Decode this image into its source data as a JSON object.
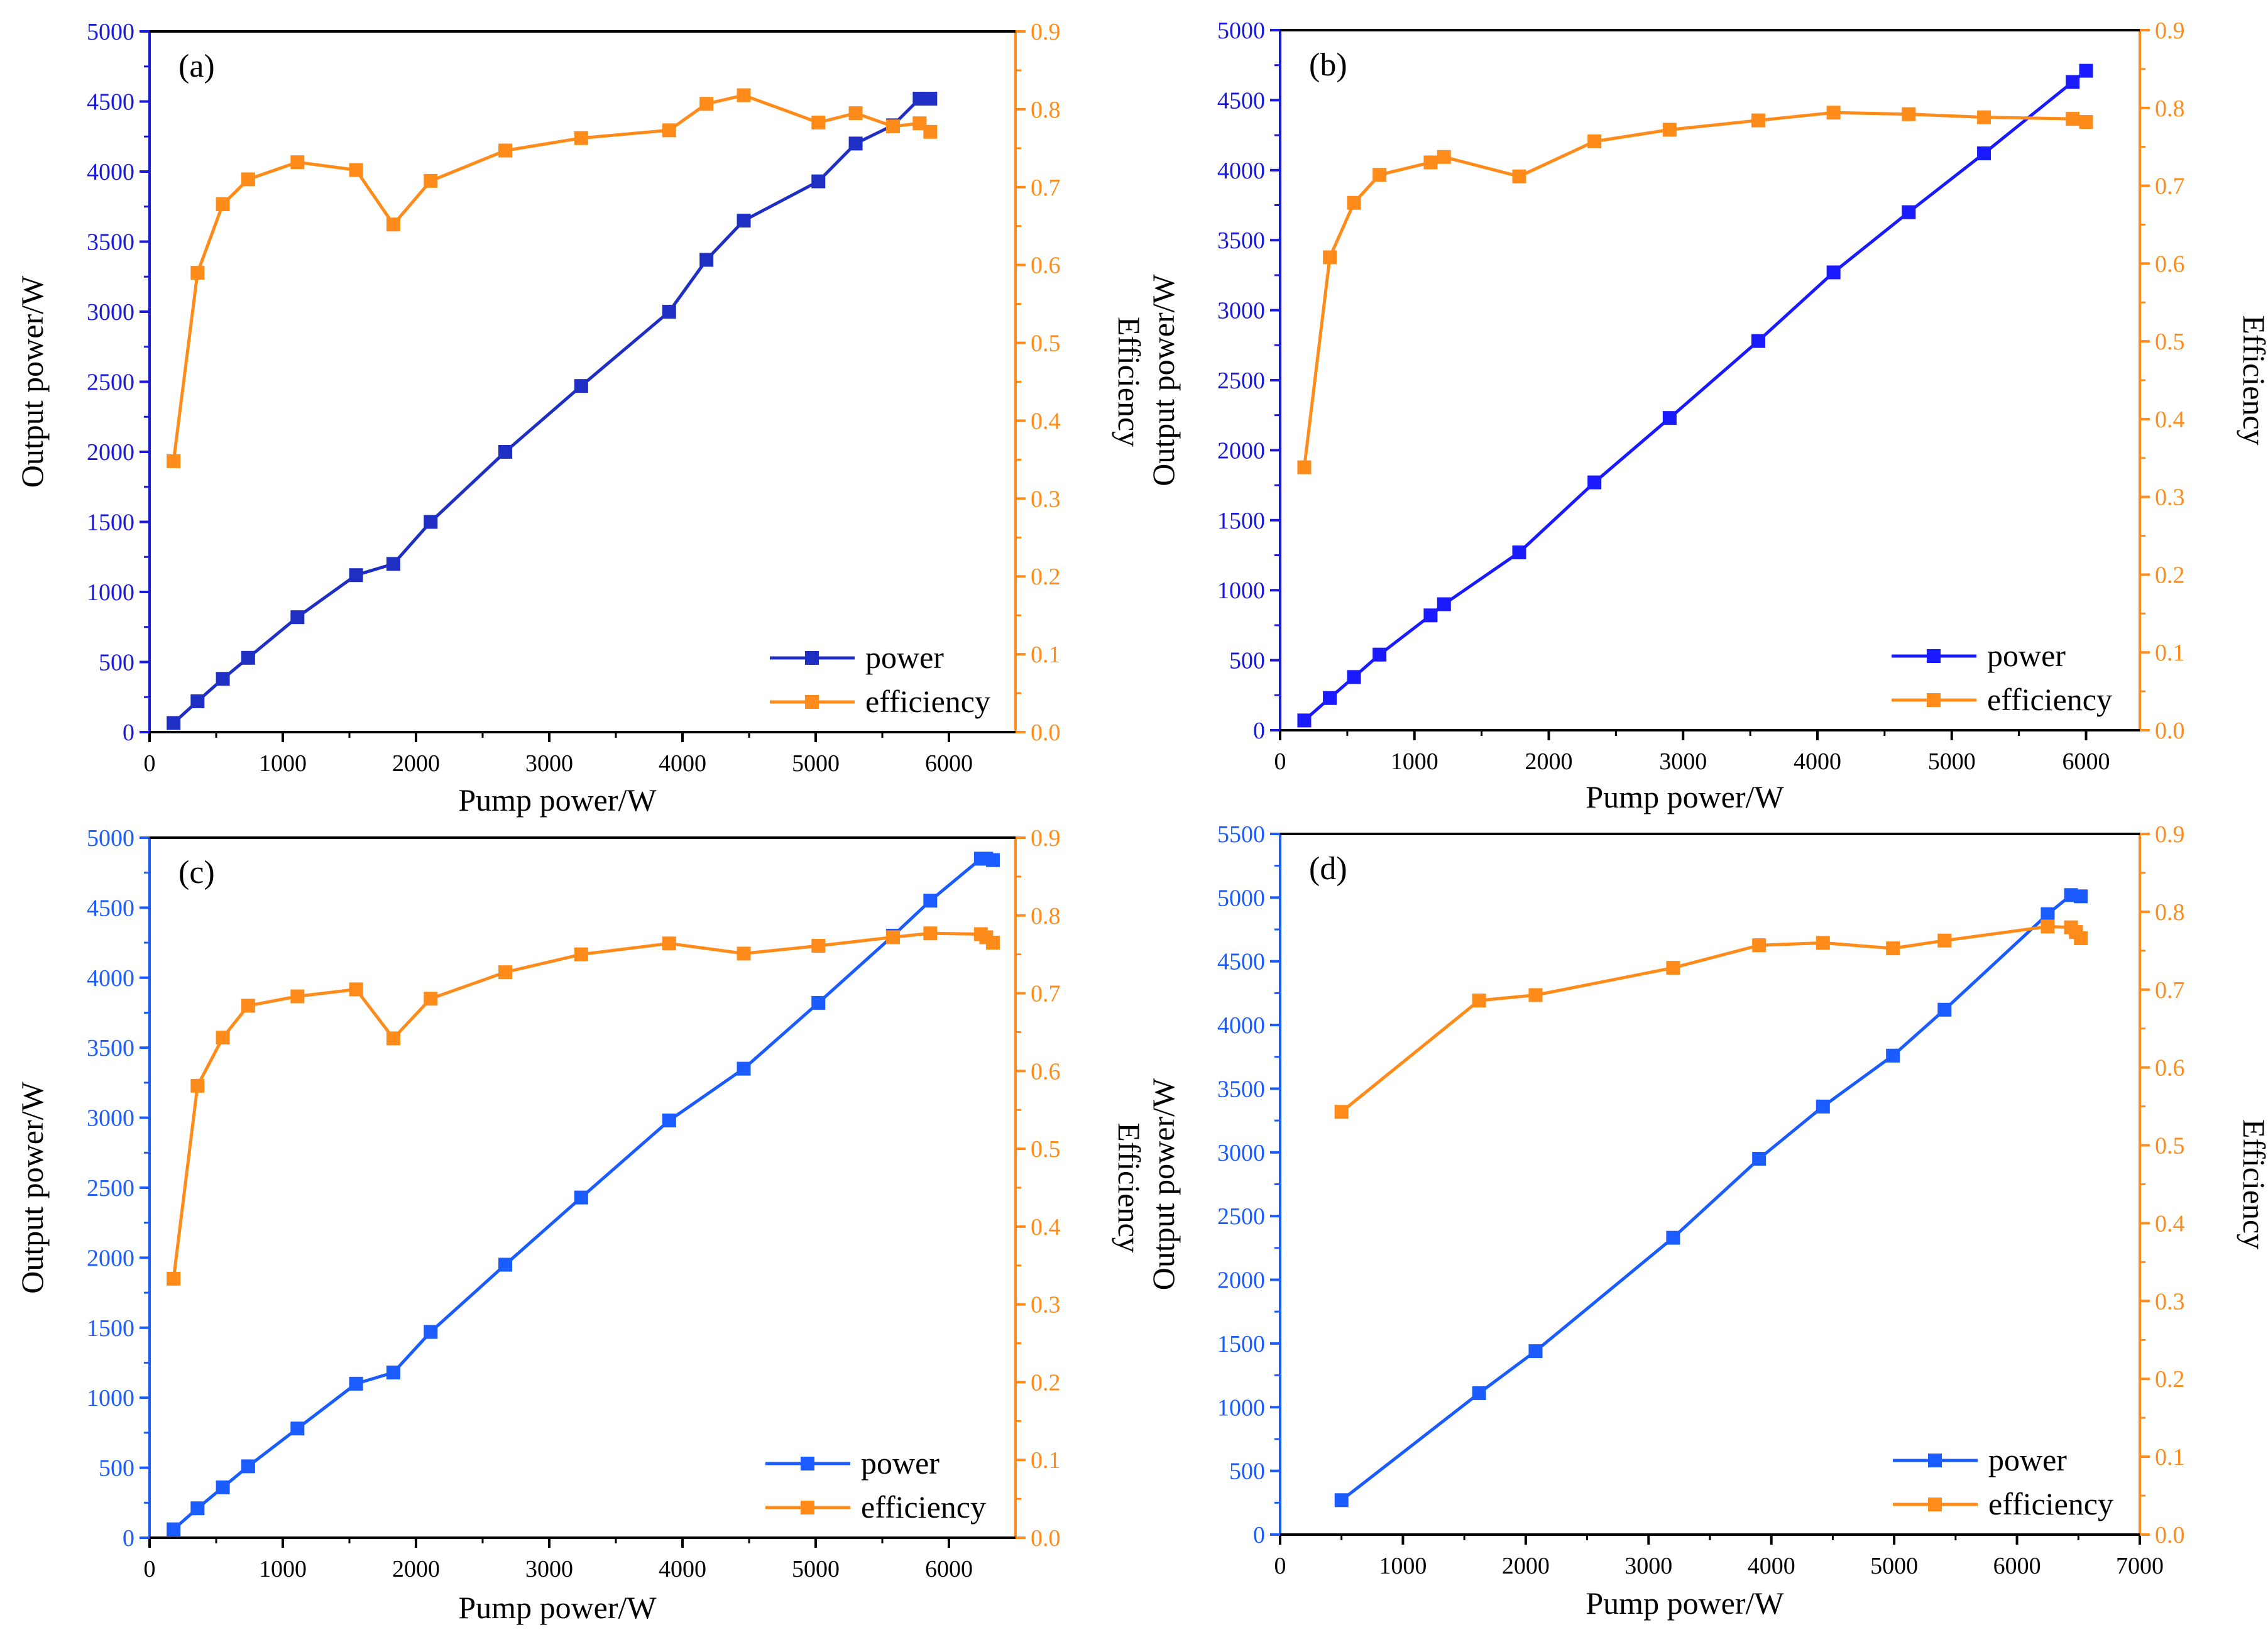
{
  "figure": {
    "panel_count": 4
  },
  "colors": {
    "axis_black": "#000000"
  },
  "chart_data": [
    {
      "type": "line",
      "panel_label": "(a)",
      "xlabel": "Pump power/W",
      "ylabel": "Output power/W",
      "y2label": "Efficiency",
      "xlim": [
        0,
        6500
      ],
      "ylim": [
        0,
        5000
      ],
      "y2lim": [
        0,
        0.9
      ],
      "xticks": [
        0,
        1000,
        2000,
        3000,
        4000,
        5000,
        6000
      ],
      "yticks": [
        0,
        500,
        1000,
        1500,
        2000,
        2500,
        3000,
        3500,
        4000,
        4500,
        5000
      ],
      "y2ticks": [
        0.0,
        0.1,
        0.2,
        0.3,
        0.4,
        0.5,
        0.6,
        0.7,
        0.8,
        0.9
      ],
      "y2tick_labels": [
        "0.0",
        "0.1",
        "0.2",
        "0.3",
        "0.4",
        "0.5",
        "0.6",
        "0.7",
        "0.8",
        "0.9"
      ],
      "left_axis_color": "#1a1adb",
      "right_axis_color": "#ff8c1a",
      "legend": {
        "position": "bottom-right"
      },
      "series": [
        {
          "name": "power",
          "axis": "left",
          "color": "#1f2fc4",
          "x": [
            180,
            360,
            550,
            740,
            1110,
            1550,
            1830,
            2110,
            2670,
            3240,
            3900,
            4180,
            4460,
            5020,
            5300,
            5580,
            5780,
            5860
          ],
          "y": [
            65,
            220,
            380,
            530,
            820,
            1120,
            1200,
            1500,
            2000,
            2470,
            3000,
            3370,
            3650,
            3930,
            4200,
            4330,
            4520,
            4520
          ]
        },
        {
          "name": "efficiency",
          "axis": "right",
          "color": "#ff8c1a",
          "x": [
            180,
            360,
            550,
            740,
            1110,
            1550,
            1830,
            2110,
            2670,
            3240,
            3900,
            4180,
            4460,
            5020,
            5300,
            5580,
            5780,
            5860
          ],
          "y": [
            0.348,
            0.59,
            0.678,
            0.71,
            0.732,
            0.722,
            0.652,
            0.708,
            0.747,
            0.763,
            0.773,
            0.807,
            0.818,
            0.783,
            0.795,
            0.778,
            0.782,
            0.771
          ]
        }
      ]
    },
    {
      "type": "line",
      "panel_label": "(b)",
      "xlabel": "Pump power/W",
      "ylabel": "Output power/W",
      "y2label": "Efficiency",
      "xlim": [
        0,
        6400
      ],
      "ylim": [
        0,
        5000
      ],
      "y2lim": [
        0,
        0.9
      ],
      "xticks": [
        0,
        1000,
        2000,
        3000,
        4000,
        5000,
        6000
      ],
      "yticks": [
        0,
        500,
        1000,
        1500,
        2000,
        2500,
        3000,
        3500,
        4000,
        4500,
        5000
      ],
      "y2ticks": [
        0.0,
        0.1,
        0.2,
        0.3,
        0.4,
        0.5,
        0.6,
        0.7,
        0.8,
        0.9
      ],
      "y2tick_labels": [
        "0.0",
        "0.1",
        "0.2",
        "0.3",
        "0.4",
        "0.5",
        "0.6",
        "0.7",
        "0.8",
        "0.9"
      ],
      "left_axis_color": "#1a1adb",
      "right_axis_color": "#ff8c1a",
      "legend": {
        "position": "bottom-right"
      },
      "series": [
        {
          "name": "power",
          "axis": "left",
          "color": "#1a1aff",
          "x": [
            180,
            370,
            550,
            740,
            1120,
            1220,
            1780,
            2340,
            2900,
            3560,
            4120,
            4680,
            5240,
            5900,
            6000
          ],
          "y": [
            70,
            230,
            380,
            540,
            820,
            900,
            1270,
            1770,
            2230,
            2780,
            3270,
            3700,
            4120,
            4630,
            4710
          ],
          "y_comment": "output power"
        },
        {
          "name": "efficiency",
          "axis": "right",
          "color": "#ff8c1a",
          "x": [
            180,
            370,
            550,
            740,
            1120,
            1220,
            1780,
            2340,
            2900,
            3560,
            4120,
            4680,
            5240,
            5900,
            6000
          ],
          "y": [
            0.338,
            0.608,
            0.678,
            0.714,
            0.73,
            0.737,
            0.712,
            0.757,
            0.772,
            0.784,
            0.794,
            0.792,
            0.788,
            0.786,
            0.782
          ]
        }
      ]
    },
    {
      "type": "line",
      "panel_label": "(c)",
      "xlabel": "Pump power/W",
      "ylabel": "Output power/W",
      "y2label": "Efficiency",
      "xlim": [
        0,
        6500
      ],
      "ylim": [
        0,
        5000
      ],
      "y2lim": [
        0,
        0.9
      ],
      "xticks": [
        0,
        1000,
        2000,
        3000,
        4000,
        5000,
        6000
      ],
      "yticks": [
        0,
        500,
        1000,
        1500,
        2000,
        2500,
        3000,
        3500,
        4000,
        4500,
        5000
      ],
      "y2ticks": [
        0.0,
        0.1,
        0.2,
        0.3,
        0.4,
        0.5,
        0.6,
        0.7,
        0.8,
        0.9
      ],
      "y2tick_labels": [
        "0.0",
        "0.1",
        "0.2",
        "0.3",
        "0.4",
        "0.5",
        "0.6",
        "0.7",
        "0.8",
        "0.9"
      ],
      "left_axis_color": "#1a5cff",
      "right_axis_color": "#ff8c1a",
      "legend": {
        "position": "bottom-right"
      },
      "series": [
        {
          "name": "power",
          "axis": "left",
          "color": "#1a5cff",
          "x": [
            180,
            360,
            550,
            740,
            1110,
            1550,
            1830,
            2110,
            2670,
            3240,
            3900,
            4460,
            5020,
            5580,
            5860,
            6240,
            6280,
            6330
          ],
          "y": [
            60,
            210,
            360,
            510,
            780,
            1100,
            1180,
            1470,
            1950,
            2430,
            2980,
            3350,
            3820,
            4300,
            4550,
            4850,
            4850,
            4840
          ]
        },
        {
          "name": "efficiency",
          "axis": "right",
          "color": "#ff8c1a",
          "x": [
            180,
            360,
            550,
            740,
            1110,
            1550,
            1830,
            2110,
            2670,
            3240,
            3900,
            4460,
            5020,
            5580,
            5860,
            6240,
            6280,
            6330
          ],
          "y": [
            0.333,
            0.581,
            0.643,
            0.684,
            0.696,
            0.705,
            0.642,
            0.693,
            0.727,
            0.75,
            0.764,
            0.751,
            0.761,
            0.772,
            0.777,
            0.776,
            0.772,
            0.765
          ]
        }
      ]
    },
    {
      "type": "line",
      "panel_label": "(d)",
      "xlabel": "Pump power/W",
      "ylabel": "Output power/W",
      "y2label": "Efficiency",
      "xlim": [
        0,
        7000
      ],
      "ylim": [
        0,
        5500
      ],
      "y2lim": [
        0,
        0.9
      ],
      "xticks": [
        0,
        1000,
        2000,
        3000,
        4000,
        5000,
        6000,
        7000
      ],
      "yticks": [
        0,
        500,
        1000,
        1500,
        2000,
        2500,
        3000,
        3500,
        4000,
        4500,
        5000,
        5500
      ],
      "y2ticks": [
        0.0,
        0.1,
        0.2,
        0.3,
        0.4,
        0.5,
        0.6,
        0.7,
        0.8,
        0.9
      ],
      "y2tick_labels": [
        "0.0",
        "0.1",
        "0.2",
        "0.3",
        "0.4",
        "0.5",
        "0.6",
        "0.7",
        "0.8",
        "0.9"
      ],
      "left_axis_color": "#1a5cff",
      "right_axis_color": "#ff8c1a",
      "legend": {
        "position": "bottom-right"
      },
      "series": [
        {
          "name": "power",
          "axis": "left",
          "color": "#1a5cff",
          "x": [
            500,
            1620,
            2080,
            3200,
            3900,
            4420,
            4990,
            5410,
            6250,
            6440,
            6520
          ],
          "y": [
            270,
            1110,
            1440,
            2330,
            2950,
            3360,
            3760,
            4120,
            4870,
            5020,
            5010
          ]
        },
        {
          "name": "efficiency",
          "axis": "right",
          "color": "#ff8c1a",
          "x": [
            500,
            1620,
            2080,
            3200,
            3900,
            4420,
            4990,
            5410,
            6250,
            6440,
            6480,
            6520
          ],
          "y": [
            0.543,
            0.686,
            0.693,
            0.728,
            0.757,
            0.76,
            0.753,
            0.763,
            0.781,
            0.78,
            0.774,
            0.766
          ]
        }
      ]
    }
  ]
}
